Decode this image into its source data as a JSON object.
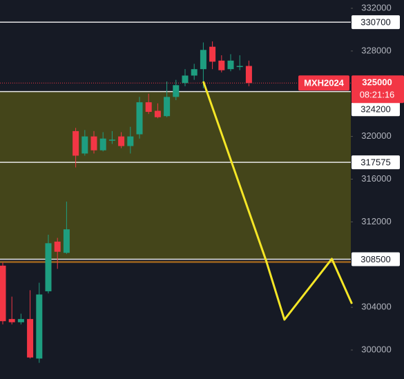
{
  "chart_data": {
    "type": "candlestick",
    "open": [
      307900,
      302900,
      302600,
      302900,
      299200,
      305500,
      310150,
      309100,
      320500,
      318400,
      320000,
      318700,
      319600,
      320000,
      319100,
      320200,
      323200,
      322400,
      321900,
      323700,
      325000,
      325700,
      326300,
      328400,
      327100,
      326300,
      326500,
      326600
    ],
    "high": [
      308200,
      305000,
      303400,
      305600,
      306300,
      310800,
      310500,
      313900,
      320800,
      320600,
      320500,
      320400,
      320500,
      320400,
      320900,
      323700,
      324000,
      323100,
      325150,
      325300,
      326300,
      326800,
      328800,
      328900,
      327600,
      327700,
      327600,
      327100
    ],
    "low": [
      302400,
      302400,
      302400,
      299200,
      298800,
      305300,
      307600,
      309000,
      317100,
      318200,
      318400,
      318600,
      319300,
      318900,
      318400,
      319800,
      322100,
      321700,
      321800,
      323400,
      324700,
      325300,
      324500,
      326300,
      326000,
      326100,
      326200,
      324700
    ],
    "close": [
      302700,
      302600,
      302900,
      299300,
      305200,
      310000,
      309200,
      311300,
      318200,
      320000,
      318700,
      319800,
      319700,
      319100,
      320000,
      323200,
      322300,
      321800,
      323700,
      324800,
      325700,
      326300,
      328100,
      327000,
      326200,
      327100,
      326600,
      325000
    ],
    "up_color": "#1e9e80",
    "down_color": "#f23645",
    "ylim": [
      297285,
      332776
    ],
    "yticks": [
      300000,
      304000,
      312000,
      316000,
      320000,
      328000,
      332000
    ],
    "levels": [
      330700,
      317575,
      308500,
      324200
    ],
    "zone": {
      "from": 308500,
      "to": 324200,
      "color": "#6b6a12"
    },
    "current_price": {
      "value": 325000,
      "symbol": "MXH2024",
      "countdown": "08:21:16",
      "color": "#f23645"
    },
    "projection": {
      "x": [
        22,
        28.9,
        30.9,
        36.1,
        38.3
      ],
      "values": [
        325147,
        308339,
        302844,
        308533,
        304331
      ],
      "color": "#f5e626"
    }
  }
}
